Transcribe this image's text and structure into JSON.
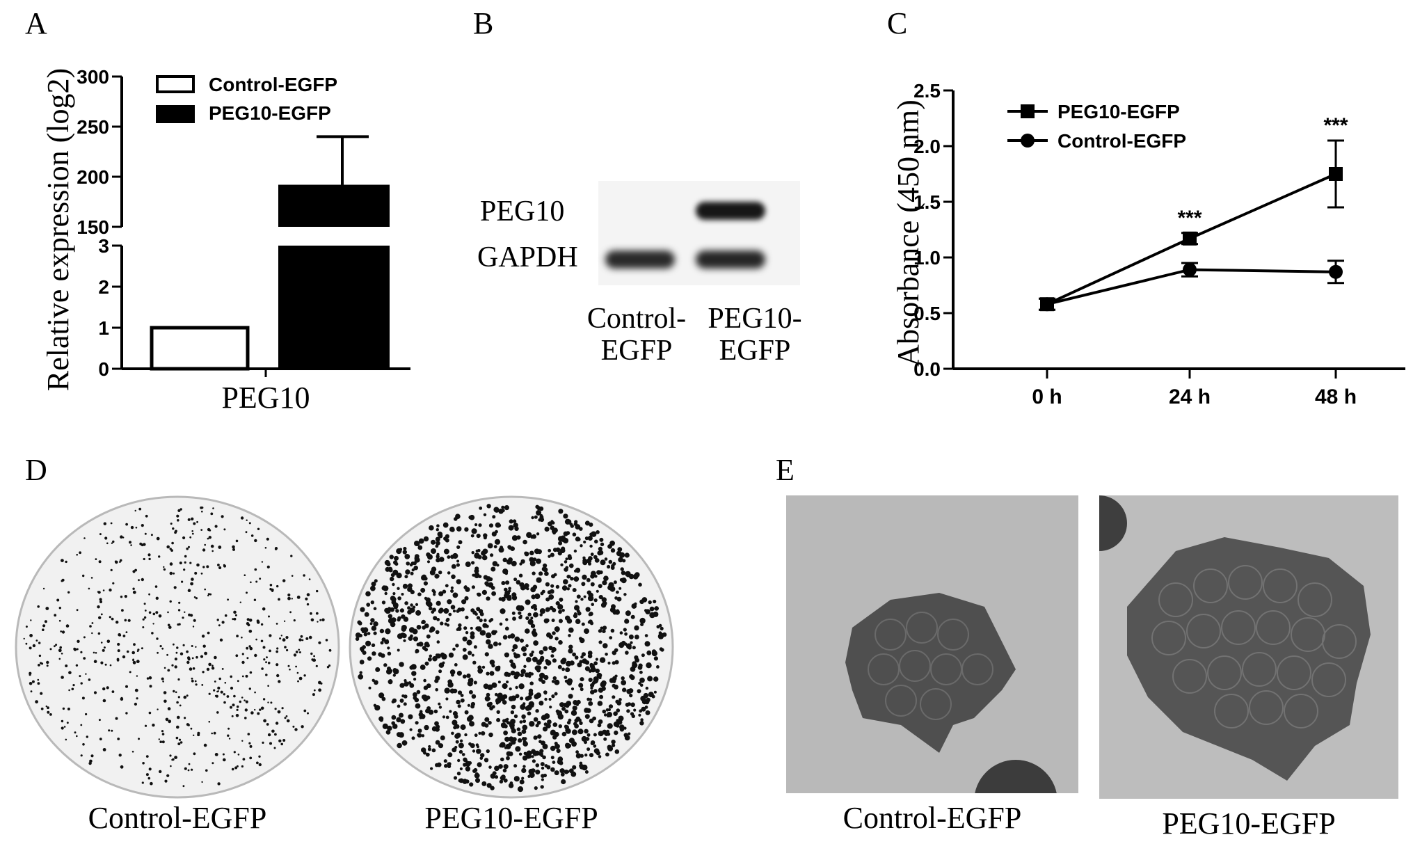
{
  "panels": {
    "a": {
      "letter": "A"
    },
    "b": {
      "letter": "B"
    },
    "c": {
      "letter": "C"
    },
    "d": {
      "letter": "D"
    },
    "e": {
      "letter": "E"
    }
  },
  "chart_data": [
    {
      "id": "panel-a",
      "type": "bar",
      "ylabel": "Relative expression (log2)",
      "xlabel": "PEG10",
      "categories": [
        "PEG10"
      ],
      "series": [
        {
          "name": "Control-EGFP",
          "values": [
            1
          ],
          "error": [
            0
          ],
          "fill": "#ffffff"
        },
        {
          "name": "PEG10-EGFP",
          "values": [
            192
          ],
          "error": [
            48
          ],
          "fill": "#000000"
        }
      ],
      "axis_break": {
        "lower_range": [
          0,
          3
        ],
        "upper_range": [
          150,
          300
        ]
      },
      "lower_ticks": [
        "0",
        "1",
        "2",
        "3"
      ],
      "upper_ticks": [
        "150",
        "200",
        "250",
        "300"
      ],
      "legend_position": "top-left"
    },
    {
      "id": "panel-c",
      "type": "line",
      "ylabel": "Absorbance (450 nm)",
      "categories": [
        "0 h",
        "24 h",
        "48 h"
      ],
      "ylim": [
        0,
        2.5
      ],
      "yticks": [
        "0.0",
        "0.5",
        "1.0",
        "1.5",
        "2.0",
        "2.5"
      ],
      "series": [
        {
          "name": "PEG10-EGFP",
          "marker": "square",
          "values": [
            0.58,
            1.17,
            1.75
          ],
          "error": [
            0.05,
            0.05,
            0.3
          ]
        },
        {
          "name": "Control-EGFP",
          "marker": "circle",
          "values": [
            0.58,
            0.89,
            0.87
          ],
          "error": [
            0.05,
            0.06,
            0.1
          ]
        }
      ],
      "annotations": [
        {
          "category": "24 h",
          "text": "***"
        },
        {
          "category": "48 h",
          "text": "***"
        }
      ],
      "legend_position": "top-left"
    }
  ],
  "blot": {
    "row_labels": [
      "PEG10",
      "GAPDH"
    ],
    "lane_labels": [
      "Control-\nEGFP",
      "PEG10-\nEGFP"
    ]
  },
  "colony": {
    "labels": [
      "Control-EGFP",
      "PEG10-EGFP"
    ]
  },
  "micro": {
    "labels": [
      "Control-EGFP",
      "PEG10-EGFP"
    ]
  }
}
